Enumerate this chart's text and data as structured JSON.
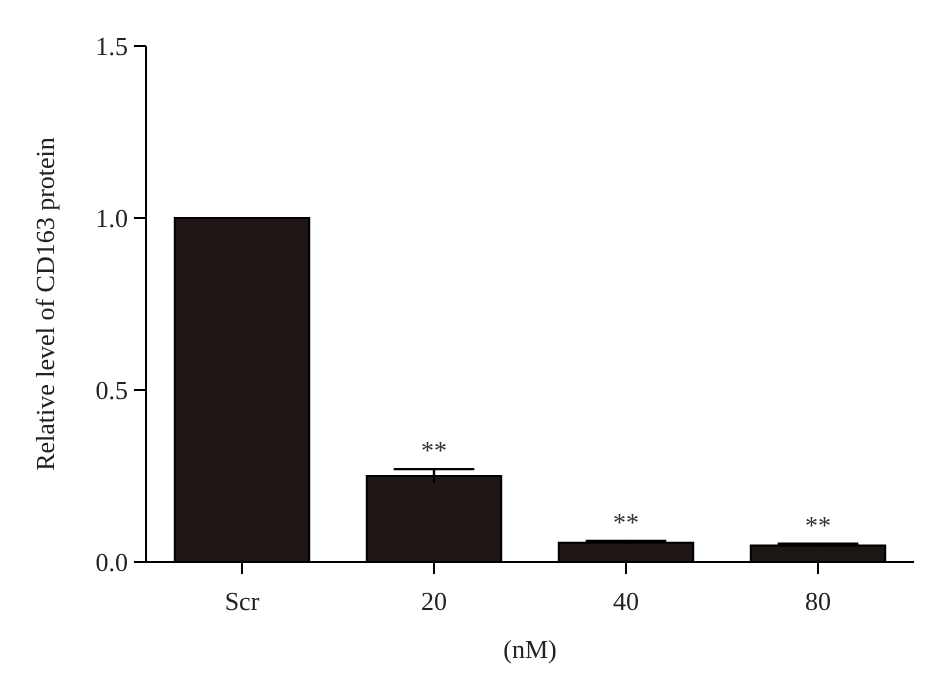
{
  "chart_data": {
    "type": "bar",
    "xlabel": "(nM)",
    "ylabel": "Relative level of CD163 protein",
    "categories": [
      "Scr",
      "20",
      "40",
      "80"
    ],
    "values": [
      1.0,
      0.25,
      0.056,
      0.048
    ],
    "errors": [
      null,
      0.02,
      0.005,
      0.005
    ],
    "color": "#1e1614",
    "ylim": [
      0,
      1.5
    ],
    "yticks": [
      {
        "value": 0,
        "label": "0.0"
      },
      {
        "value": 0.5,
        "label": "0.5"
      },
      {
        "value": 1,
        "label": "1.0"
      },
      {
        "value": 1.5,
        "label": "1.5"
      }
    ],
    "annotations": [
      {
        "text": "**",
        "x": "20",
        "y": 0.27
      },
      {
        "text": "**",
        "x": "40",
        "y": 0.061
      },
      {
        "text": "**",
        "x": "80",
        "y": 0.053
      }
    ],
    "grid": false
  }
}
